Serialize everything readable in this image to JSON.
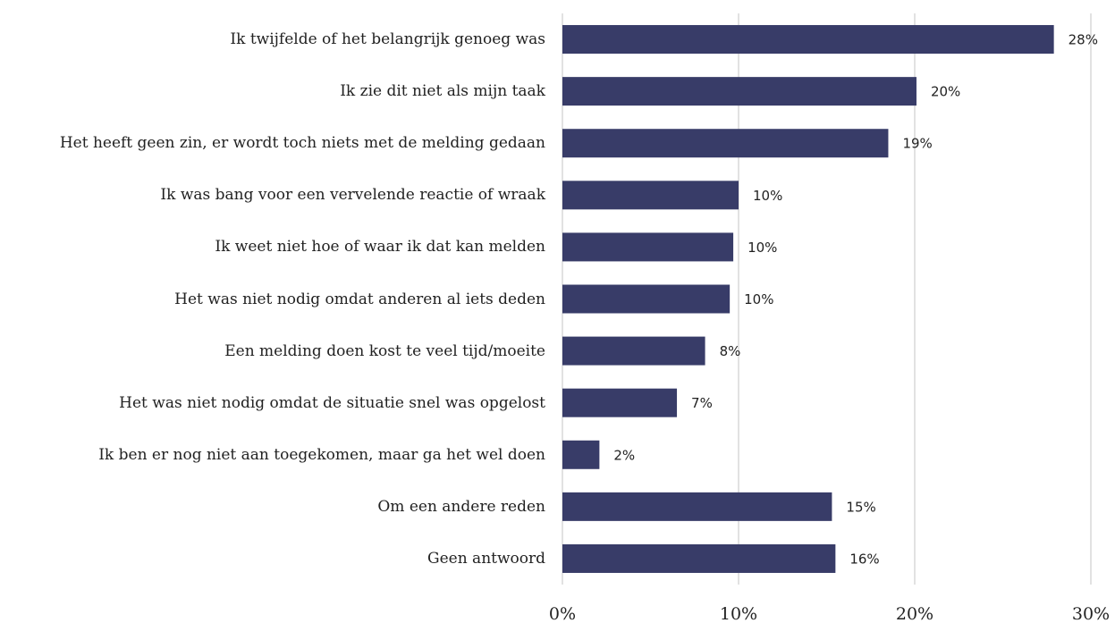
{
  "chart_data": {
    "type": "barh",
    "categories": [
      "Ik twijfelde of het belangrijk genoeg was",
      "Ik zie dit niet als mijn taak",
      "Het heeft geen zin, er wordt toch niets met de melding gedaan",
      "Ik was bang voor een vervelende reactie of wraak",
      "Ik weet niet hoe of waar ik dat kan melden",
      "Het was niet nodig omdat anderen al iets deden",
      "Een melding doen kost te veel tijd/moeite",
      "Het was niet nodig omdat de situatie snel was opgelost",
      "Ik ben er nog niet aan toegekomen, maar ga het wel doen",
      "Om een andere reden",
      "Geen antwoord"
    ],
    "values": [
      27.9,
      20.1,
      18.5,
      10.0,
      9.7,
      9.5,
      8.1,
      6.5,
      2.1,
      15.3,
      15.5
    ],
    "value_labels": [
      "28%",
      "20%",
      "19%",
      "10%",
      "10%",
      "10%",
      "8%",
      "7%",
      "2%",
      "15%",
      "16%"
    ],
    "color": "#383c68",
    "xlim": [
      0,
      30
    ],
    "xticks": [
      {
        "value": 0,
        "label": "0%"
      },
      {
        "value": 10,
        "label": "10%"
      },
      {
        "value": 20,
        "label": "20%"
      },
      {
        "value": 30,
        "label": "30%"
      }
    ],
    "grid": true
  }
}
